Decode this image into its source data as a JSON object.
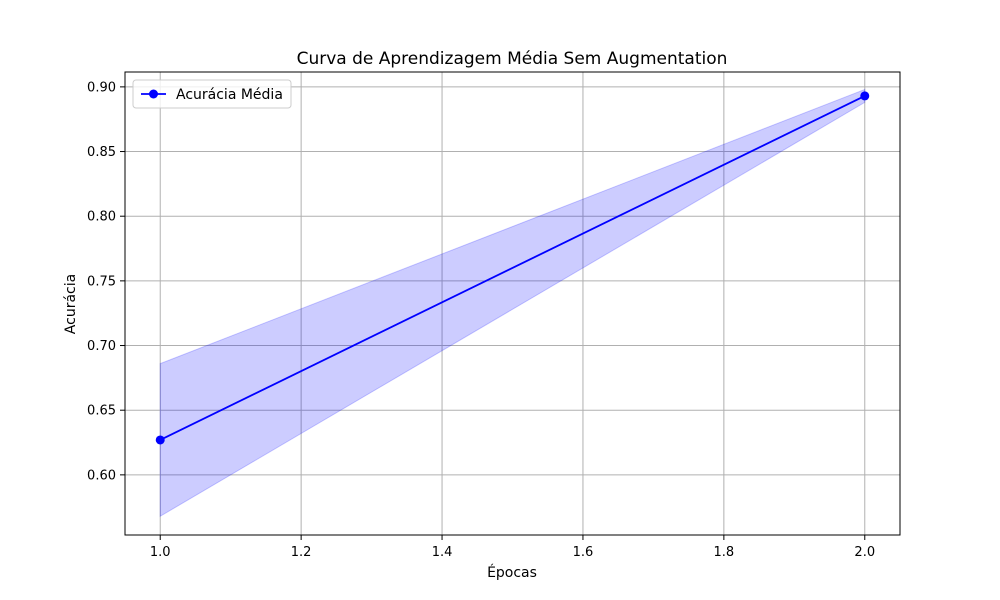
{
  "chart_data": {
    "type": "line",
    "title": "Curva de Aprendizagem Média Sem Augmentation",
    "xlabel": "Épocas",
    "ylabel": "Acurácia",
    "x": [
      1.0,
      2.0
    ],
    "series": [
      {
        "name": "Acurácia Média",
        "values": [
          0.627,
          0.893
        ],
        "band_lower": [
          0.568,
          0.888
        ],
        "band_upper": [
          0.686,
          0.898
        ],
        "color": "#0000ff",
        "band_color": "#0000ff",
        "marker": "circle"
      }
    ],
    "xlim": [
      0.95,
      2.05
    ],
    "ylim": [
      0.5535,
      0.9115
    ],
    "xticks": [
      1.0,
      1.2,
      1.4,
      1.6,
      1.8,
      2.0
    ],
    "xtick_labels": [
      "1.0",
      "1.2",
      "1.4",
      "1.6",
      "1.8",
      "2.0"
    ],
    "yticks": [
      0.6,
      0.65,
      0.7,
      0.75,
      0.8,
      0.85,
      0.9
    ],
    "ytick_labels": [
      "0.60",
      "0.65",
      "0.70",
      "0.75",
      "0.80",
      "0.85",
      "0.90"
    ],
    "grid": true,
    "legend_position": "upper-left"
  }
}
